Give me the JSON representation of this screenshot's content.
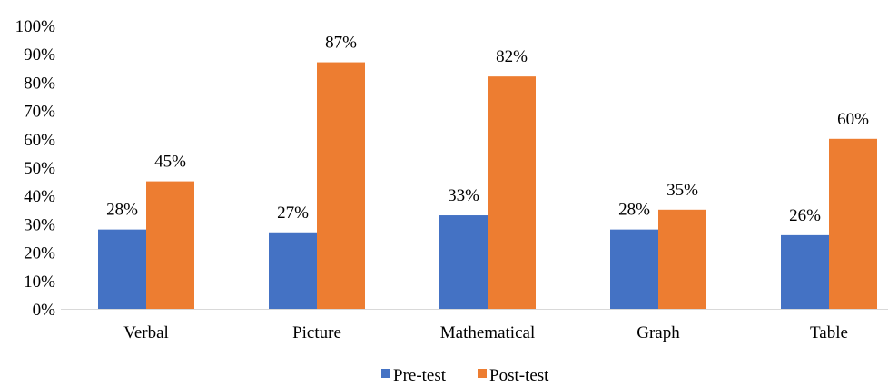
{
  "chart_data": {
    "type": "bar",
    "categories": [
      "Verbal",
      "Picture",
      "Mathematical",
      "Graph",
      "Table"
    ],
    "series": [
      {
        "name": "Pre-test",
        "values": [
          28,
          27,
          33,
          28,
          26
        ],
        "color": "#4472C4"
      },
      {
        "name": "Post-test",
        "values": [
          45,
          87,
          82,
          35,
          60
        ],
        "color": "#ED7D31"
      }
    ],
    "data_labels": {
      "pre": [
        "28%",
        "27%",
        "33%",
        "28%",
        "26%"
      ],
      "post": [
        "45%",
        "87%",
        "82%",
        "35%",
        "60%"
      ]
    },
    "y_ticks": [
      "0%",
      "10%",
      "20%",
      "30%",
      "40%",
      "50%",
      "60%",
      "70%",
      "80%",
      "90%",
      "100%"
    ],
    "ylim": [
      0,
      100
    ],
    "grid": false,
    "legend": {
      "placement": "bottom-center",
      "labels": [
        "Pre-test",
        "Post-test"
      ]
    }
  }
}
